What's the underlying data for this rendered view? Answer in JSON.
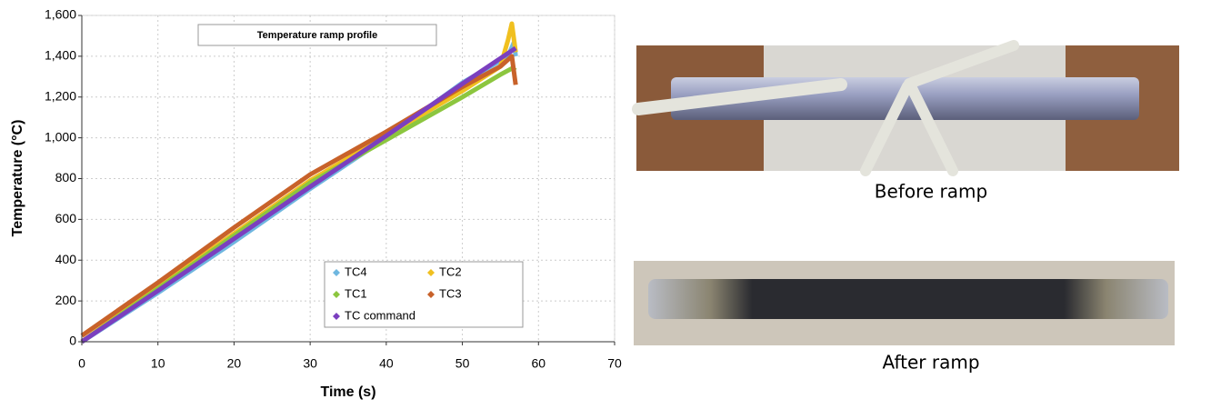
{
  "chart_data": {
    "type": "line",
    "title": "Temperature ramp profile",
    "x_label": "Time (s)",
    "y_label": "Temperature (°C)",
    "xlim": [
      0,
      70
    ],
    "xticks": [
      0,
      10,
      20,
      30,
      40,
      50,
      60,
      70
    ],
    "ylim": [
      0,
      1600
    ],
    "yticks": [
      0,
      200,
      400,
      600,
      800,
      {
        "value": 1000,
        "label": "1,000"
      },
      {
        "value": 1200,
        "label": "1,200"
      },
      {
        "value": 1400,
        "label": "1,400"
      },
      {
        "value": 1600,
        "label": "1,600"
      }
    ],
    "grid": true,
    "legend": "lower-right",
    "series": [
      {
        "name": "TC4",
        "color": "#6fb7e0",
        "x": [
          0,
          10,
          20,
          30,
          40,
          50,
          56,
          56.8,
          57
        ],
        "values": [
          0,
          240,
          490,
          750,
          1000,
          1270,
          1400,
          1470,
          1400
        ]
      },
      {
        "name": "TC2",
        "color": "#f0c020",
        "x": [
          0,
          10,
          20,
          30,
          40,
          50,
          55,
          56,
          56.5,
          57
        ],
        "values": [
          0,
          270,
          530,
          790,
          1010,
          1230,
          1350,
          1480,
          1560,
          1420
        ]
      },
      {
        "name": "TC1",
        "color": "#8cc63f",
        "x": [
          0,
          10,
          20,
          30,
          40,
          50,
          55,
          56.5,
          57
        ],
        "values": [
          0,
          260,
          520,
          780,
          990,
          1200,
          1310,
          1340,
          1330
        ]
      },
      {
        "name": "TC3",
        "color": "#c8622a",
        "x": [
          0,
          10,
          20,
          30,
          40,
          50,
          55,
          56.5,
          57
        ],
        "values": [
          30,
          290,
          560,
          820,
          1030,
          1250,
          1350,
          1400,
          1260
        ]
      },
      {
        "name": "TC command",
        "color": "#7b3fbf",
        "x": [
          0,
          10,
          20,
          30,
          40,
          50,
          57
        ],
        "values": [
          0,
          250,
          505,
          760,
          1010,
          1265,
          1440
        ]
      }
    ]
  },
  "panels": [
    {
      "caption": "Before ramp"
    },
    {
      "caption": "After ramp"
    }
  ]
}
